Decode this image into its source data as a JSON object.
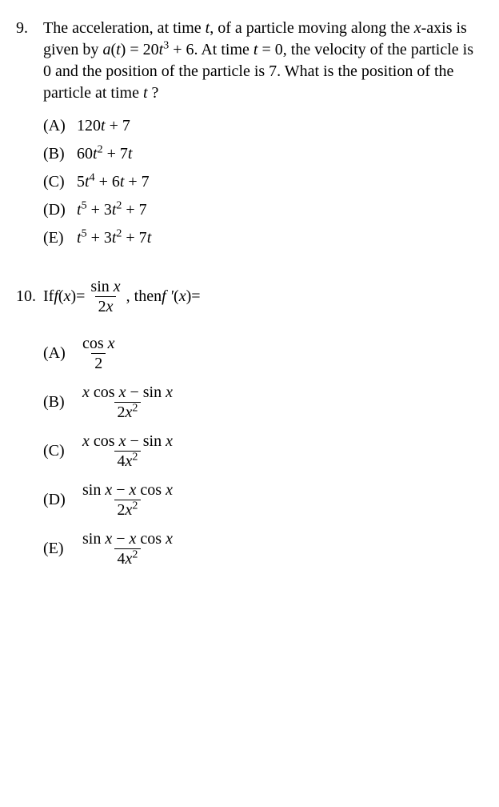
{
  "problems": [
    {
      "number": "9.",
      "stem": {
        "segments": [
          {
            "t": "The acceleration, at time "
          },
          {
            "t": "t",
            "it": true
          },
          {
            "t": ", of a particle moving along the "
          },
          {
            "t": "x",
            "it": true
          },
          {
            "t": "-axis is given by "
          },
          {
            "t": "a",
            "it": true
          },
          {
            "t": "("
          },
          {
            "t": "t",
            "it": true
          },
          {
            "t": ") = 20"
          },
          {
            "t": "t",
            "it": true
          },
          {
            "sup": "3"
          },
          {
            "t": " + 6. At time "
          },
          {
            "t": "t",
            "it": true
          },
          {
            "t": " = 0, the velocity of the particle is 0 and the position of the particle is 7. What is the position of the particle at time "
          },
          {
            "t": "t",
            "it": true
          },
          {
            "t": " ?"
          }
        ]
      },
      "choices": [
        {
          "letter": "(A)",
          "expr": [
            {
              "t": "120"
            },
            {
              "t": "t",
              "it": true
            },
            {
              "t": " + 7"
            }
          ]
        },
        {
          "letter": "(B)",
          "expr": [
            {
              "t": "60"
            },
            {
              "t": "t",
              "it": true
            },
            {
              "sup": "2"
            },
            {
              "t": " + 7"
            },
            {
              "t": "t",
              "it": true
            }
          ]
        },
        {
          "letter": "(C)",
          "expr": [
            {
              "t": "5"
            },
            {
              "t": "t",
              "it": true
            },
            {
              "sup": "4"
            },
            {
              "t": " + 6"
            },
            {
              "t": "t",
              "it": true
            },
            {
              "t": " + 7"
            }
          ]
        },
        {
          "letter": "(D)",
          "expr": [
            {
              "t": "t",
              "it": true
            },
            {
              "sup": "5"
            },
            {
              "t": " + 3"
            },
            {
              "t": "t",
              "it": true
            },
            {
              "sup": "2"
            },
            {
              "t": " + 7"
            }
          ]
        },
        {
          "letter": "(E)",
          "expr": [
            {
              "t": "t",
              "it": true
            },
            {
              "sup": "5"
            },
            {
              "t": " + 3"
            },
            {
              "t": "t",
              "it": true
            },
            {
              "sup": "2"
            },
            {
              "t": " + 7"
            },
            {
              "t": "t",
              "it": true
            }
          ]
        }
      ]
    },
    {
      "number": "10.",
      "stem10": {
        "lead": "If  ",
        "f_label": "f",
        "x_label": "x",
        "eq": " = ",
        "frac_num": [
          {
            "t": "sin "
          },
          {
            "t": "x",
            "it": true
          }
        ],
        "frac_den": [
          {
            "t": "2"
          },
          {
            "t": "x",
            "it": true
          }
        ],
        "mid": ", then  ",
        "fprime_label": "f ′",
        "trail": " ="
      },
      "choices": [
        {
          "letter": "(A)",
          "frac": {
            "num": [
              {
                "t": "cos "
              },
              {
                "t": "x",
                "it": true
              }
            ],
            "den": [
              {
                "t": "2"
              }
            ]
          }
        },
        {
          "letter": "(B)",
          "frac": {
            "num": [
              {
                "t": "x",
                "it": true
              },
              {
                "t": " cos "
              },
              {
                "t": "x",
                "it": true
              },
              {
                "t": " − sin "
              },
              {
                "t": "x",
                "it": true
              }
            ],
            "den": [
              {
                "t": "2"
              },
              {
                "t": "x",
                "it": true
              },
              {
                "sup": "2"
              }
            ]
          }
        },
        {
          "letter": "(C)",
          "frac": {
            "num": [
              {
                "t": "x",
                "it": true
              },
              {
                "t": " cos "
              },
              {
                "t": "x",
                "it": true
              },
              {
                "t": " − sin "
              },
              {
                "t": "x",
                "it": true
              }
            ],
            "den": [
              {
                "t": "4"
              },
              {
                "t": "x",
                "it": true
              },
              {
                "sup": "2"
              }
            ]
          }
        },
        {
          "letter": "(D)",
          "frac": {
            "num": [
              {
                "t": "sin "
              },
              {
                "t": "x",
                "it": true
              },
              {
                "t": " − "
              },
              {
                "t": "x",
                "it": true
              },
              {
                "t": " cos "
              },
              {
                "t": "x",
                "it": true
              }
            ],
            "den": [
              {
                "t": "2"
              },
              {
                "t": "x",
                "it": true
              },
              {
                "sup": "2"
              }
            ]
          }
        },
        {
          "letter": "(E)",
          "frac": {
            "num": [
              {
                "t": "sin "
              },
              {
                "t": "x",
                "it": true
              },
              {
                "t": " − "
              },
              {
                "t": "x",
                "it": true
              },
              {
                "t": " cos "
              },
              {
                "t": "x",
                "it": true
              }
            ],
            "den": [
              {
                "t": "4"
              },
              {
                "t": "x",
                "it": true
              },
              {
                "sup": "2"
              }
            ]
          }
        }
      ]
    }
  ]
}
